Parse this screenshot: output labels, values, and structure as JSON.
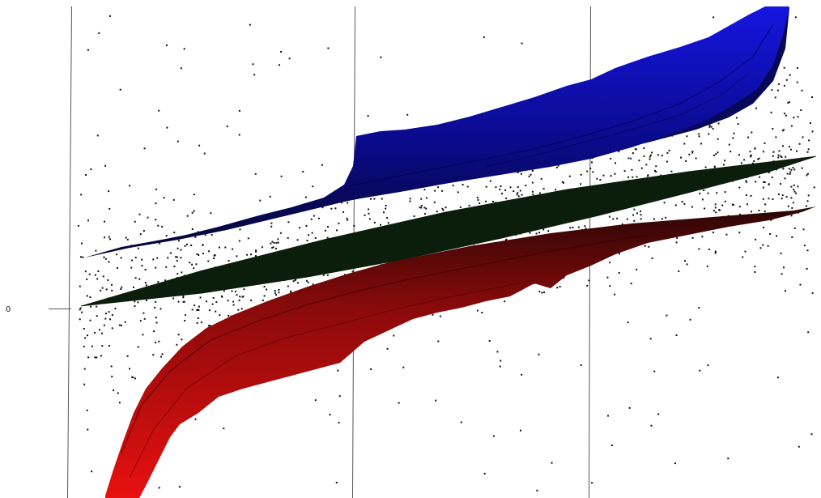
{
  "chart_data": {
    "type": "scatter",
    "description_free": true,
    "y_tick_labels": [
      "0"
    ],
    "series": [
      {
        "role": "scatter-points",
        "color": "#111111",
        "point_count": 1400
      },
      {
        "role": "upper-band-surface",
        "color": "#1010c8"
      },
      {
        "role": "center-surface",
        "color": "#0d1f0d"
      },
      {
        "role": "lower-band-surface",
        "color": "#c81010"
      }
    ],
    "grid": true,
    "legend": "none"
  }
}
